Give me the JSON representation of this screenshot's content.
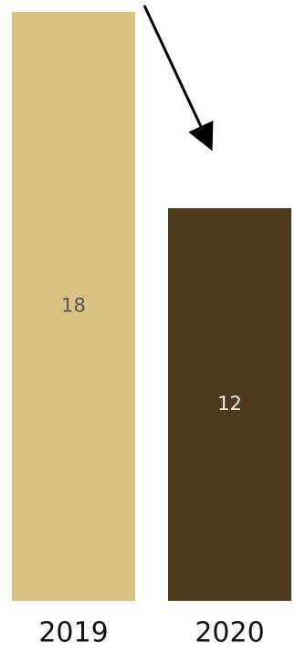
{
  "chart_data": {
    "type": "bar",
    "categories": [
      "2019",
      "2020"
    ],
    "values": [
      18,
      12
    ],
    "data_labels": [
      "18",
      "12"
    ],
    "title": "",
    "xlabel": "",
    "ylabel": "",
    "ylim": [
      0,
      18
    ],
    "grid": false,
    "legend": "none",
    "annotation": "downward-arrow",
    "colors": {
      "bars": [
        "#d9c282",
        "#4e3a1d"
      ],
      "labels": [
        "#555555",
        "#f2eee6"
      ],
      "arrow": "#000000"
    }
  }
}
